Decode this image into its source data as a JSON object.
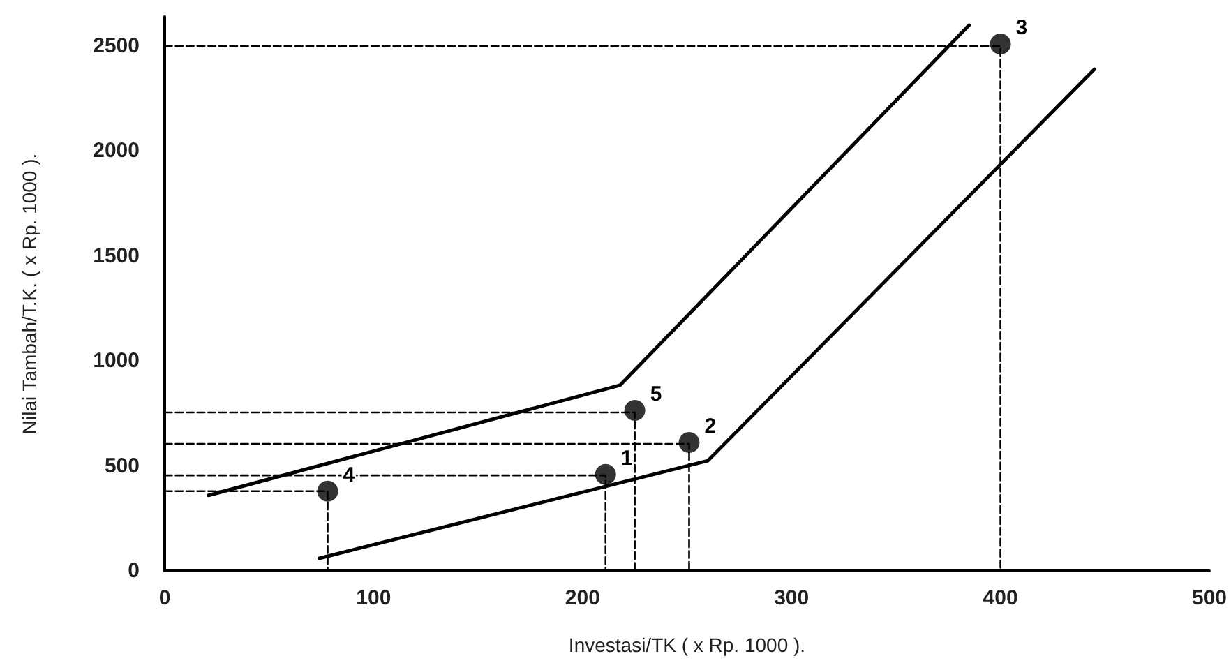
{
  "chart_data": {
    "type": "scatter",
    "xlabel": "Investasi/TK ( x Rp. 1000 ).",
    "ylabel": "Nilai Tambah/T.K. ( x Rp. 1000 ).",
    "xlim": [
      0,
      500
    ],
    "xticks": [
      0,
      100,
      200,
      300,
      400,
      500
    ],
    "ylim": [
      0,
      2640
    ],
    "yticks": [
      0,
      500,
      1000,
      1500,
      2000,
      2500
    ],
    "grid": false,
    "series": [
      {
        "type": "line",
        "color": "#000000",
        "x": [
          21,
          218,
          385
        ],
        "values": [
          360,
          885,
          2600
        ],
        "marker": "none",
        "line_style": "solid"
      },
      {
        "type": "line",
        "color": "#000000",
        "x": [
          74,
          260,
          445
        ],
        "values": [
          60,
          525,
          2390
        ],
        "marker": "none",
        "line_style": "solid"
      },
      {
        "type": "line",
        "color": "#000000",
        "x": [
          0,
          211,
          211
        ],
        "values": [
          455,
          455,
          0
        ],
        "marker": "none",
        "line_style": "dashed"
      },
      {
        "type": "line",
        "color": "#000000",
        "x": [
          0,
          251,
          251
        ],
        "values": [
          605,
          605,
          0
        ],
        "marker": "none",
        "line_style": "dashed"
      },
      {
        "type": "line",
        "color": "#000000",
        "x": [
          0,
          400,
          400
        ],
        "values": [
          2500,
          2500,
          0
        ],
        "marker": "none",
        "line_style": "dashed"
      },
      {
        "type": "line",
        "color": "#000000",
        "x": [
          0,
          78,
          78
        ],
        "values": [
          380,
          380,
          0
        ],
        "marker": "none",
        "line_style": "dashed"
      },
      {
        "type": "line",
        "color": "#000000",
        "x": [
          0,
          225,
          225
        ],
        "values": [
          755,
          755,
          0
        ],
        "marker": "none",
        "line_style": "dashed"
      },
      {
        "type": "scatter",
        "color": "#000000",
        "x": [
          211,
          251,
          400,
          78,
          225
        ],
        "values": [
          460,
          612,
          2510,
          380,
          765
        ],
        "marker": "circle"
      }
    ],
    "annotations": [
      {
        "text": "1",
        "x": 211,
        "y": 460
      },
      {
        "text": "2",
        "x": 251,
        "y": 612
      },
      {
        "text": "3",
        "x": 400,
        "y": 2510
      },
      {
        "text": "4",
        "x": 78,
        "y": 380
      },
      {
        "text": "5",
        "x": 225,
        "y": 765
      }
    ]
  }
}
